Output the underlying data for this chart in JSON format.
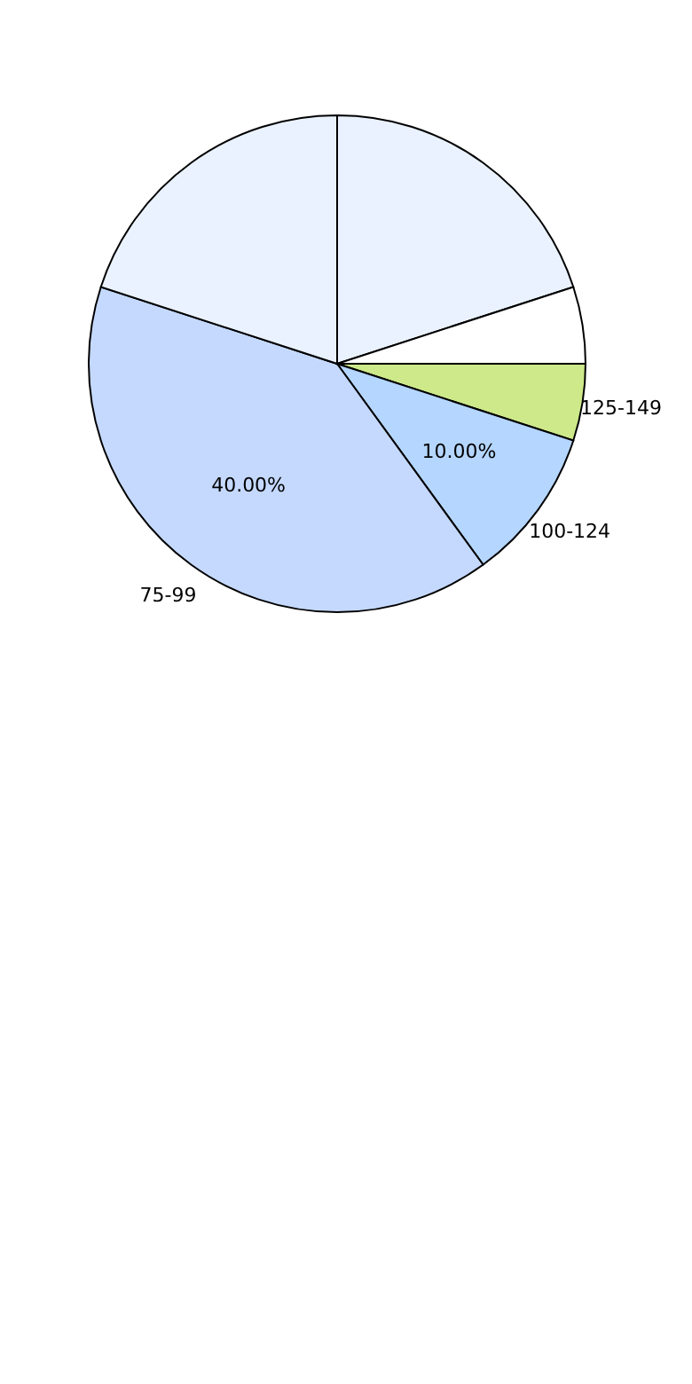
{
  "chart_data": {
    "type": "pie",
    "categories": [
      "125-149",
      "100-124",
      "75-99",
      null,
      null,
      null
    ],
    "values": [
      5,
      10,
      40,
      20,
      20,
      5
    ],
    "value_labels": [
      null,
      "10.00%",
      "40.00%",
      null,
      null,
      null
    ],
    "colors": [
      "#cde98a",
      "#b5d6ff",
      "#c5d9ff",
      "#eaf2ff",
      "#eaf2ff",
      "#ffffff"
    ],
    "legend": false
  }
}
